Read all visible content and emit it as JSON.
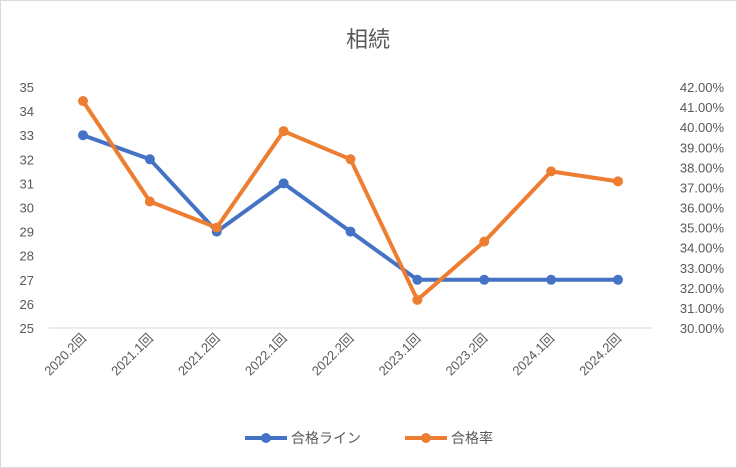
{
  "chart_data": {
    "type": "line",
    "title": "相続",
    "categories": [
      "2020.2回",
      "2021.1回",
      "2021.2回",
      "2022.1回",
      "2022.2回",
      "2023.1回",
      "2023.2回",
      "2024.1回",
      "2024.2回"
    ],
    "series": [
      {
        "name": "合格ライン",
        "axis": "left",
        "color": "#4472C4",
        "values": [
          33,
          32,
          29,
          31,
          29,
          27,
          27,
          27,
          27
        ]
      },
      {
        "name": "合格率",
        "axis": "right",
        "color": "#ED7D31",
        "values": [
          41.3,
          36.3,
          35.0,
          39.8,
          38.4,
          31.4,
          34.3,
          37.8,
          37.3
        ]
      }
    ],
    "y_left": {
      "min": 25,
      "max": 35,
      "ticks": [
        "35",
        "34",
        "33",
        "32",
        "31",
        "30",
        "29",
        "28",
        "27",
        "26",
        "25"
      ]
    },
    "y_right": {
      "min": 30,
      "max": 42,
      "ticks": [
        "42.00%",
        "41.00%",
        "40.00%",
        "39.00%",
        "38.00%",
        "37.00%",
        "36.00%",
        "35.00%",
        "34.00%",
        "33.00%",
        "32.00%",
        "31.00%",
        "30.00%"
      ]
    },
    "grid": false,
    "legend_position": "bottom"
  }
}
